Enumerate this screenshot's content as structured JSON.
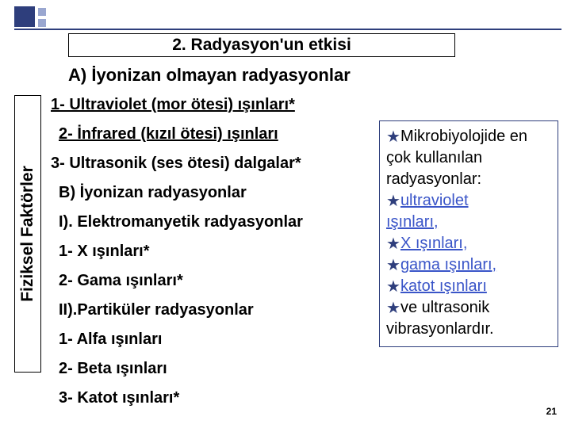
{
  "title": "2. Radyasyon'un etkisi",
  "subtitleA": "A) İyonizan olmayan radyasyonlar",
  "sidebar": "Fiziksel Faktörler",
  "main": {
    "l1": "1- Ultraviolet (mor ötesi) ışınları*",
    "l2": "2- İnfrared (kızıl ötesi) ışınları",
    "l3": "3- Ultrasonik (ses ötesi) dalgalar*",
    "b": "B) İyonizan radyasyonlar",
    "i": "I). Elektromanyetik radyasyonlar",
    "i1": "1- X ışınları*",
    "i2": "2- Gama ışınları*",
    "ii": "II).Partiküler radyasyonlar",
    "ii1": "1- Alfa ışınları",
    "ii2": "2- Beta ışınları",
    "ii3": "3- Katot ışınları*"
  },
  "right": {
    "intro1": "Mikrobiyolojide",
    "intro2": "en çok kullanılan radyasyonlar:",
    "b1a": "ultraviolet",
    "b1b": "ışınları,",
    "b2": "X ışınları,",
    "b3": "gama ışınları,",
    "b4": "katot ışınları",
    "b5a": "ve ultrasonik",
    "b5b": "vibrasyonlardır."
  },
  "page": "21",
  "colors": {
    "accent": "#2e3e7c",
    "link": "#3a55c8"
  }
}
